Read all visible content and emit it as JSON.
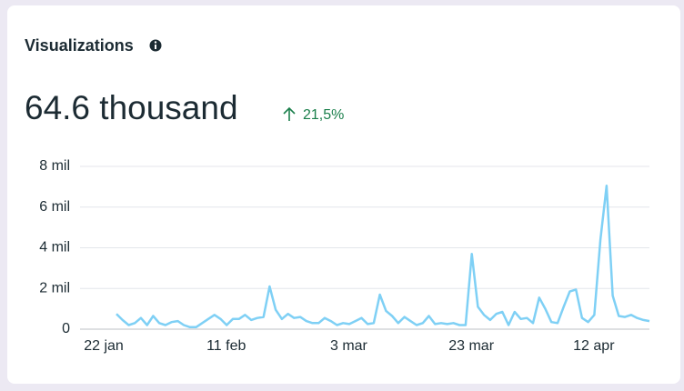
{
  "chart_data": {
    "type": "line",
    "title": "Visualizations",
    "headline": "64.6 thousand",
    "change": "21,5%",
    "change_color": "#1a7f4b",
    "color": "#7fd0f5",
    "grid": true,
    "categories": [
      "22 jan",
      null,
      null,
      null,
      null,
      null,
      null,
      null,
      null,
      null,
      null,
      null,
      null,
      null,
      null,
      null,
      null,
      null,
      null,
      null,
      "11 feb",
      null,
      null,
      null,
      null,
      null,
      null,
      null,
      null,
      null,
      null,
      null,
      null,
      null,
      null,
      null,
      null,
      null,
      null,
      null,
      "3 mar",
      null,
      null,
      null,
      null,
      null,
      null,
      null,
      null,
      null,
      null,
      null,
      null,
      null,
      null,
      null,
      null,
      null,
      null,
      null,
      "23 mar",
      null,
      null,
      null,
      null,
      null,
      null,
      null,
      null,
      null,
      null,
      null,
      null,
      null,
      null,
      null,
      null,
      null,
      null,
      null,
      "12 apr",
      null,
      null,
      null,
      null,
      null,
      null,
      null
    ],
    "values": [
      750,
      450,
      200,
      300,
      550,
      200,
      650,
      300,
      200,
      350,
      400,
      200,
      100,
      100,
      300,
      500,
      700,
      500,
      200,
      500,
      500,
      700,
      450,
      550,
      600,
      2100,
      950,
      500,
      750,
      550,
      600,
      400,
      300,
      300,
      550,
      400,
      200,
      300,
      250,
      400,
      550,
      250,
      300,
      1700,
      900,
      650,
      300,
      600,
      400,
      200,
      300,
      650,
      250,
      300,
      250,
      300,
      200,
      200,
      3700,
      1100,
      700,
      450,
      750,
      850,
      200,
      850,
      500,
      550,
      300,
      1550,
      1000,
      350,
      300,
      1100,
      1850,
      1950,
      550,
      350,
      700,
      4400,
      7050,
      1650,
      650,
      600,
      700,
      550,
      450,
      400
    ],
    "ylim": [
      0,
      8000
    ],
    "yticks": [
      0,
      {
        "value": 2000,
        "label": "2 mil"
      },
      {
        "value": 4000,
        "label": "4 mil"
      },
      {
        "value": 6000,
        "label": "6 mil"
      },
      {
        "value": 8000,
        "label": "8 mil"
      }
    ]
  }
}
